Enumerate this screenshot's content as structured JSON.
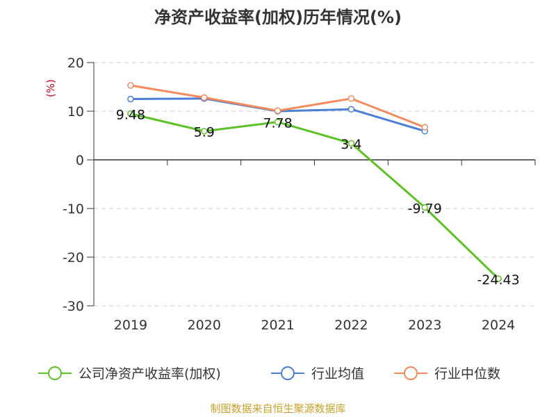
{
  "colors": {
    "company": "#5cc124",
    "avg": "#4a7fd8",
    "median": "#f5895a",
    "source": "#c9a22a",
    "unit": "#d0021b"
  },
  "chart_data": {
    "type": "line",
    "title": "净资产收益率(加权)历年情况(%)",
    "unit_label": "(%)",
    "categories": [
      "2019",
      "2020",
      "2021",
      "2022",
      "2023",
      "2024"
    ],
    "ylim": [
      -30,
      20
    ],
    "yticks": [
      "20",
      "10",
      "0",
      "-10",
      "-20",
      "-30"
    ],
    "grid": true,
    "legend_position": "bottom",
    "series": [
      {
        "name": "公司净资产收益率(加权)",
        "color": "#5cc124",
        "values": [
          9.48,
          5.9,
          7.78,
          3.4,
          -9.79,
          -24.43
        ],
        "labels": [
          "9.48",
          "5.9",
          "7.78",
          "3.4",
          "-9.79",
          "-24.43"
        ]
      },
      {
        "name": "行业均值",
        "color": "#4a7fd8",
        "values": [
          12.5,
          12.6,
          10.0,
          10.4,
          5.9,
          null
        ]
      },
      {
        "name": "行业中位数",
        "color": "#f5895a",
        "values": [
          15.3,
          12.8,
          10.1,
          12.6,
          6.7,
          null
        ]
      }
    ]
  },
  "source_text": "制图数据来自恒生聚源数据库"
}
